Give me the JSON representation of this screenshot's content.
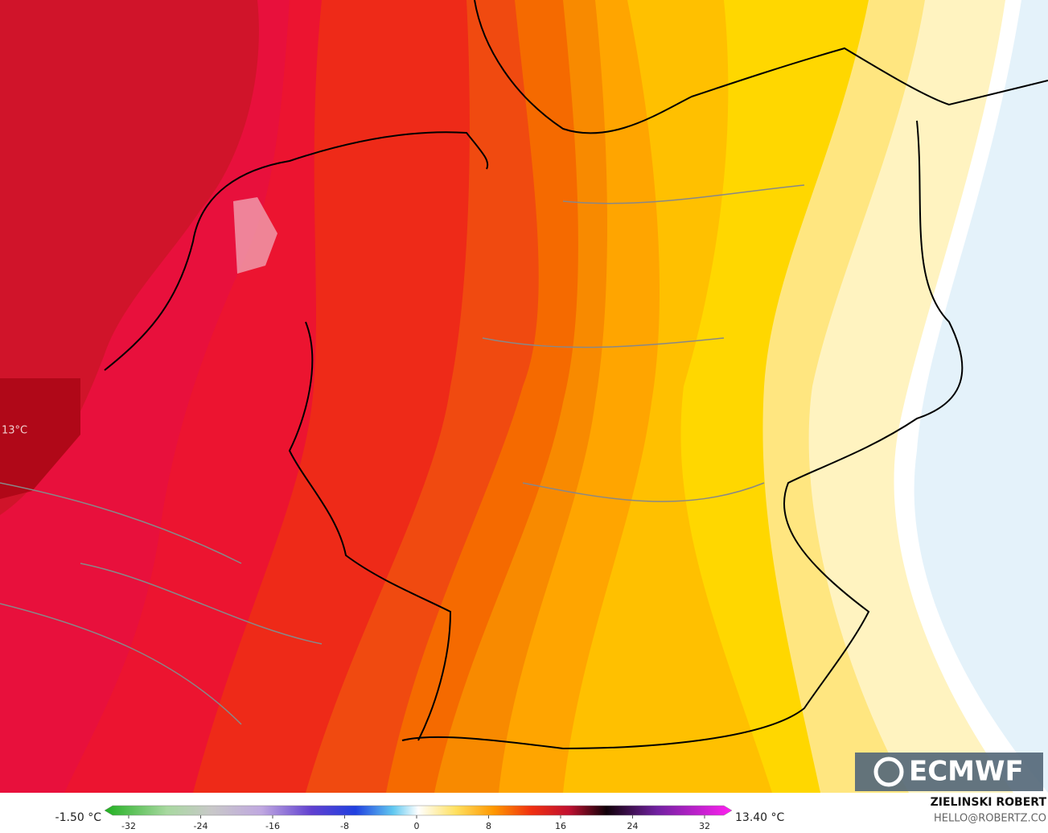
{
  "map_label": "13°C",
  "logo": "ECMWF",
  "legend": {
    "min_label": "-1.50 °C",
    "max_label": "13.40 °C",
    "ticks": [
      -32,
      -24,
      -16,
      -8,
      0,
      8,
      16,
      24,
      32
    ]
  },
  "credit": {
    "author": "ZIELINSKI ROBERT",
    "email": "HELLO@ROBERTZ.CO"
  }
}
